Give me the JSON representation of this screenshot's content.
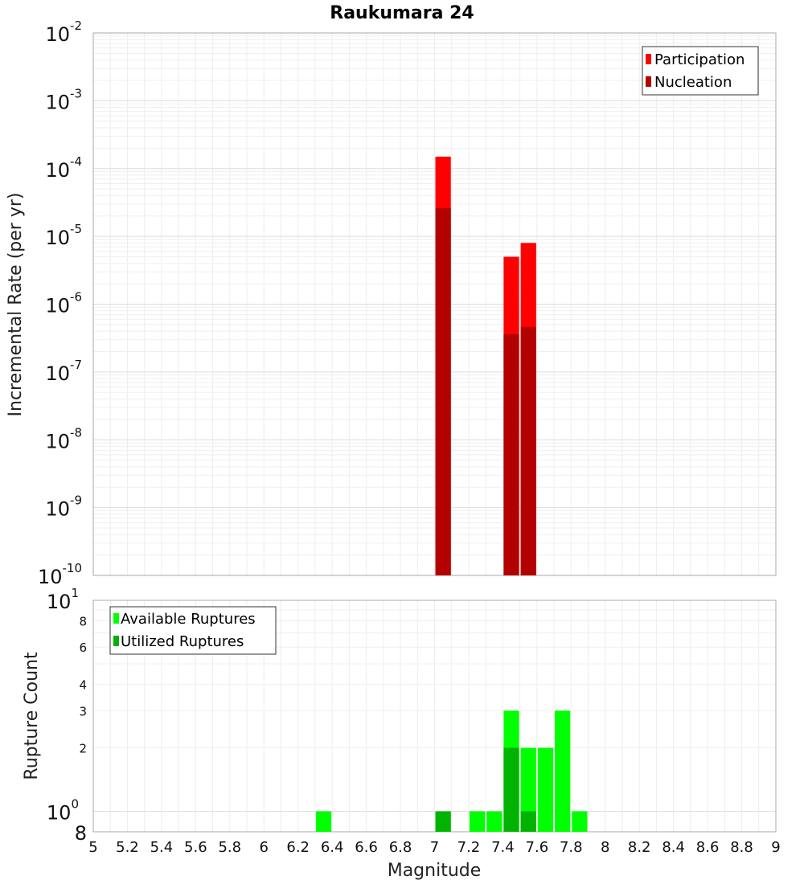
{
  "chart_data": [
    {
      "type": "bar",
      "title": "Raukumara 24",
      "xlabel": "",
      "ylabel": "Incremental Rate (per yr)",
      "yscale": "log",
      "ylim": [
        1e-10,
        0.01
      ],
      "xlim": [
        5,
        9
      ],
      "bar_width": 0.1,
      "grid": true,
      "legend_position": "top-right",
      "y_ticks": [
        {
          "base": "10",
          "exp": "-10"
        },
        {
          "base": "10",
          "exp": "-9"
        },
        {
          "base": "10",
          "exp": "-8"
        },
        {
          "base": "10",
          "exp": "-7"
        },
        {
          "base": "10",
          "exp": "-6"
        },
        {
          "base": "10",
          "exp": "-5"
        },
        {
          "base": "10",
          "exp": "-4"
        },
        {
          "base": "10",
          "exp": "-3"
        },
        {
          "base": "10",
          "exp": "-2"
        }
      ],
      "series": [
        {
          "name": "Participation",
          "color": "#ff0000",
          "points": [
            {
              "x": 7.05,
              "y": 0.00015
            },
            {
              "x": 7.45,
              "y": 5e-06
            },
            {
              "x": 7.55,
              "y": 8e-06
            }
          ]
        },
        {
          "name": "Nucleation",
          "color": "#b30000",
          "points": [
            {
              "x": 7.05,
              "y": 2.6e-05
            },
            {
              "x": 7.45,
              "y": 3.6e-07
            },
            {
              "x": 7.55,
              "y": 4.6e-07
            }
          ]
        }
      ]
    },
    {
      "type": "bar",
      "title": "",
      "xlabel": "Magnitude",
      "ylabel": "Rupture Count",
      "yscale": "log",
      "ylim": [
        0.8,
        10
      ],
      "xlim": [
        5,
        9
      ],
      "bar_width": 0.1,
      "grid": true,
      "legend_position": "top-left",
      "x_ticks": [
        "5",
        "5.2",
        "5.4",
        "5.6",
        "5.8",
        "6",
        "6.2",
        "6.4",
        "6.6",
        "6.8",
        "7",
        "7.2",
        "7.4",
        "7.6",
        "7.8",
        "8",
        "8.2",
        "8.4",
        "8.6",
        "8.8",
        "9"
      ],
      "y_major_ticks": [
        {
          "value": 1,
          "base": "10",
          "exp": "0"
        },
        {
          "value": 10,
          "base": "10",
          "exp": "1"
        }
      ],
      "y_minor_ticks": [
        {
          "value": 0.8,
          "label": "8"
        },
        {
          "value": 2,
          "label": "2"
        },
        {
          "value": 3,
          "label": "3"
        },
        {
          "value": 4,
          "label": "4"
        },
        {
          "value": 6,
          "label": "6"
        },
        {
          "value": 8,
          "label": "8"
        }
      ],
      "series": [
        {
          "name": "Available Ruptures",
          "color": "#00ff00",
          "points": [
            {
              "x": 6.35,
              "y": 1
            },
            {
              "x": 7.05,
              "y": 1
            },
            {
              "x": 7.25,
              "y": 1
            },
            {
              "x": 7.35,
              "y": 1
            },
            {
              "x": 7.45,
              "y": 3
            },
            {
              "x": 7.55,
              "y": 2
            },
            {
              "x": 7.65,
              "y": 2
            },
            {
              "x": 7.75,
              "y": 3
            },
            {
              "x": 7.85,
              "y": 1
            }
          ]
        },
        {
          "name": "Utilized Ruptures",
          "color": "#00b300",
          "points": [
            {
              "x": 7.05,
              "y": 1
            },
            {
              "x": 7.45,
              "y": 2
            },
            {
              "x": 7.55,
              "y": 1
            }
          ]
        }
      ]
    }
  ]
}
